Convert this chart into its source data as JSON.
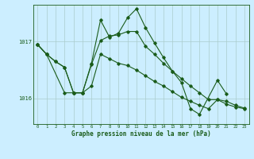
{
  "title": "Graphe pression niveau de la mer (hPa)",
  "bg_color": "#cceeff",
  "grid_color": "#aacccc",
  "line_color": "#1a5c1a",
  "ytick_color": "#1a5c1a",
  "yticks": [
    1016,
    1017
  ],
  "ylim": [
    1015.55,
    1017.65
  ],
  "xlim": [
    -0.5,
    23.5
  ],
  "series1_x": [
    0,
    1,
    2,
    3,
    4,
    5,
    6,
    7,
    8,
    9,
    10,
    11,
    12,
    13,
    14,
    15,
    16,
    17,
    18,
    19,
    20,
    21,
    22,
    23
  ],
  "series1_y": [
    1016.95,
    1016.78,
    1016.65,
    1016.55,
    1016.1,
    1016.1,
    1016.22,
    1016.78,
    1016.7,
    1016.62,
    1016.58,
    1016.5,
    1016.4,
    1016.3,
    1016.22,
    1016.12,
    1016.02,
    1015.95,
    1015.88,
    1015.82,
    1015.98,
    1015.95,
    1015.88,
    1015.83
  ],
  "series2_x": [
    0,
    1,
    2,
    3,
    4,
    5,
    6,
    7,
    8,
    9,
    10,
    11,
    12,
    13,
    14,
    15,
    16,
    17,
    18,
    19,
    20,
    21,
    22,
    23
  ],
  "series2_y": [
    1016.95,
    1016.78,
    1016.65,
    1016.55,
    1016.1,
    1016.1,
    1016.6,
    1017.02,
    1017.1,
    1017.12,
    1017.18,
    1017.18,
    1016.92,
    1016.78,
    1016.62,
    1016.48,
    1016.35,
    1016.22,
    1016.1,
    1015.98,
    1015.98,
    1015.9,
    1015.85,
    1015.82
  ],
  "series3_x": [
    0,
    1,
    3,
    4,
    5,
    6,
    7,
    8,
    9,
    10,
    11,
    12,
    13,
    14,
    15,
    16,
    17,
    18,
    20,
    21
  ],
  "series3_y": [
    1016.95,
    1016.78,
    1016.1,
    1016.1,
    1016.1,
    1016.62,
    1017.38,
    1017.08,
    1017.15,
    1017.42,
    1017.58,
    1017.25,
    1016.98,
    1016.72,
    1016.48,
    1016.28,
    1015.82,
    1015.72,
    1016.32,
    1016.08
  ]
}
